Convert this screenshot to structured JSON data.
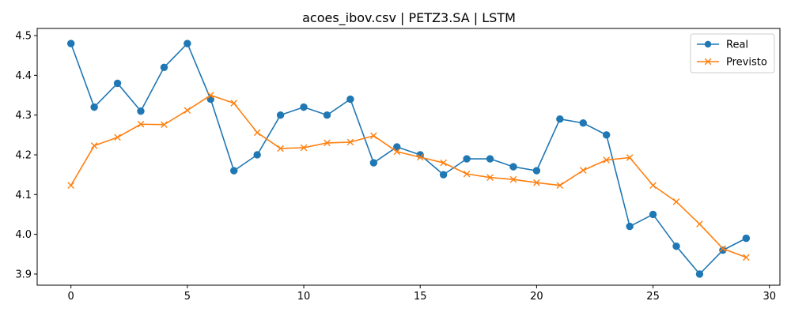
{
  "chart_data": {
    "type": "line",
    "title": "acoes_ibov.csv | PETZ3.SA | LSTM",
    "xlabel": "",
    "ylabel": "",
    "xlim": [
      -1.45,
      30.45
    ],
    "ylim": [
      3.872,
      4.518
    ],
    "xticks": [
      0,
      5,
      10,
      15,
      20,
      25,
      30
    ],
    "yticks": [
      3.9,
      4.0,
      4.1,
      4.2,
      4.3,
      4.4,
      4.5
    ],
    "grid": false,
    "legend_position": "top-right",
    "series": [
      {
        "name": "Real",
        "color": "#1f77b4",
        "marker": "circle",
        "x": [
          0,
          1,
          2,
          3,
          4,
          5,
          6,
          7,
          8,
          9,
          10,
          11,
          12,
          13,
          14,
          15,
          16,
          17,
          18,
          19,
          20,
          21,
          22,
          23,
          24,
          25,
          26,
          27,
          28,
          29
        ],
        "values": [
          4.48,
          4.32,
          4.38,
          4.31,
          4.42,
          4.48,
          4.34,
          4.16,
          4.2,
          4.3,
          4.32,
          4.3,
          4.34,
          4.18,
          4.22,
          4.2,
          4.15,
          4.19,
          4.19,
          4.17,
          4.16,
          4.29,
          4.28,
          4.25,
          4.02,
          4.05,
          3.97,
          3.9,
          3.96,
          3.99
        ]
      },
      {
        "name": "Previsto",
        "color": "#ff7f0e",
        "marker": "x",
        "x": [
          0,
          1,
          2,
          3,
          4,
          5,
          6,
          7,
          8,
          9,
          10,
          11,
          12,
          13,
          14,
          15,
          16,
          17,
          18,
          19,
          20,
          21,
          22,
          23,
          24,
          25,
          26,
          27,
          28,
          29
        ],
        "values": [
          4.123,
          4.223,
          4.244,
          4.277,
          4.276,
          4.312,
          4.35,
          4.33,
          4.256,
          4.216,
          4.218,
          4.23,
          4.232,
          4.248,
          4.208,
          4.194,
          4.18,
          4.152,
          4.143,
          4.138,
          4.13,
          4.123,
          4.161,
          4.187,
          4.193,
          4.123,
          4.082,
          4.026,
          3.964,
          3.942
        ]
      }
    ]
  }
}
